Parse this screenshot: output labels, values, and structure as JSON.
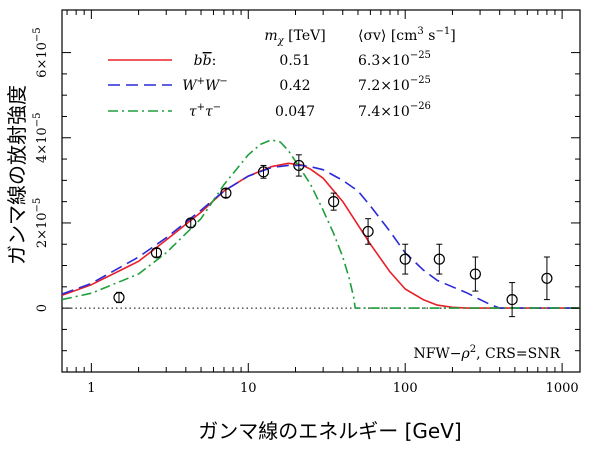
{
  "chart_data": {
    "type": "line",
    "xlabel": "ガンマ線のエネルギー [GeV]",
    "ylabel": "ガンマ線の放射強度",
    "x_scale": "log",
    "xlim": [
      0.65,
      1300
    ],
    "ylim": [
      -1.5e-05,
      7e-05
    ],
    "x_ticks": [
      {
        "value": 1,
        "label": "1"
      },
      {
        "value": 10,
        "label": "10"
      },
      {
        "value": 100,
        "label": "100"
      },
      {
        "value": 1000,
        "label": "1000"
      }
    ],
    "y_ticks": [
      {
        "value": 0,
        "label": "0",
        "parts": [
          "0",
          "",
          ""
        ]
      },
      {
        "value": 2e-05,
        "label": "2×10⁻⁵",
        "parts": [
          "2×10",
          "−5",
          ""
        ]
      },
      {
        "value": 4e-05,
        "label": "4×10⁻⁵",
        "parts": [
          "4×10",
          "−5",
          ""
        ]
      },
      {
        "value": 6e-05,
        "label": "6×10⁻⁵",
        "parts": [
          "6×10",
          "−5",
          ""
        ]
      }
    ],
    "grid": false,
    "zero_line": true,
    "legend": {
      "placement": "top-left",
      "header_mass": {
        "base": "m",
        "sub": "χ",
        "rest": " [TeV]"
      },
      "header_sigma": {
        "open": "⟨σv⟩",
        "unit": "  [cm",
        "exp1": "3",
        "mid": " s",
        "exp2": "−1",
        "close": "]"
      }
    },
    "series": [
      {
        "name": "bb",
        "label": {
          "base": "b",
          "bar": "b",
          "sup": "",
          "tail": ":"
        },
        "mass": "0.51",
        "sigma_base": "6.3×10",
        "sigma_exp": "−25",
        "color": "#e8202a",
        "dash": "",
        "x": [
          0.65,
          1,
          2,
          3,
          5,
          7,
          10,
          14,
          18,
          22,
          25,
          30,
          40,
          50,
          60,
          80,
          100,
          130,
          160,
          200,
          250,
          300,
          1300
        ],
        "y": [
          3e-06,
          5.5e-06,
          1.1e-05,
          1.6e-05,
          2.25e-05,
          2.75e-05,
          3.1e-05,
          3.32e-05,
          3.4e-05,
          3.36e-05,
          3.26e-05,
          3.05e-05,
          2.5e-05,
          1.95e-05,
          1.5e-05,
          8.5e-06,
          4.5e-06,
          2e-06,
          7e-07,
          2e-07,
          0.0,
          0.0,
          0.0
        ]
      },
      {
        "name": "WW",
        "label": {
          "base": "W",
          "bar": "",
          "sup": "+",
          "tail": ""
        },
        "mass": "0.42",
        "sigma_base": "7.2×10",
        "sigma_exp": "−25",
        "color": "#2a2ad9",
        "dash": "12,6",
        "x": [
          0.65,
          1,
          2,
          3,
          5,
          7,
          10,
          14,
          18,
          22,
          25,
          30,
          40,
          50,
          60,
          80,
          100,
          130,
          160,
          200,
          250,
          300,
          350,
          400,
          1300
        ],
        "y": [
          3.3e-06,
          5.8e-06,
          1.2e-05,
          1.65e-05,
          2.3e-05,
          2.75e-05,
          3.1e-05,
          3.3e-05,
          3.35e-05,
          3.35e-05,
          3.32e-05,
          3.25e-05,
          3e-05,
          2.75e-05,
          2.4e-05,
          1.8e-05,
          1.3e-05,
          9e-06,
          6.5e-06,
          5e-06,
          3.5e-06,
          2e-06,
          8e-07,
          0.0,
          0.0
        ]
      },
      {
        "name": "tautau",
        "label": {
          "base": "τ",
          "bar": "",
          "sup": "+",
          "tail": ""
        },
        "mass": "0.047",
        "sigma_base": "7.4×10",
        "sigma_exp": "−26",
        "color": "#1f9e3a",
        "dash": "10,4,2,4",
        "x": [
          0.65,
          1,
          2,
          3,
          5,
          7,
          10,
          12,
          14,
          16,
          18,
          20,
          25,
          30,
          35,
          40,
          44,
          47,
          48,
          1300
        ],
        "y": [
          2e-06,
          3.5e-06,
          8e-06,
          1.3e-05,
          2.1e-05,
          2.9e-05,
          3.6e-05,
          3.85e-05,
          3.95e-05,
          3.9e-05,
          3.7e-05,
          3.45e-05,
          2.9e-05,
          2.3e-05,
          1.75e-05,
          1.2e-05,
          7e-06,
          2.5e-06,
          0.0,
          0.0
        ]
      }
    ],
    "data_points": {
      "x": [
        1.5,
        2.6,
        4.3,
        7.2,
        12.5,
        21,
        35,
        58,
        100,
        165,
        280,
        480,
        800
      ],
      "y": [
        2.5e-06,
        1.3e-05,
        2e-05,
        2.7e-05,
        3.2e-05,
        3.35e-05,
        2.5e-05,
        1.8e-05,
        1.15e-05,
        1.15e-05,
        8e-06,
        2e-06,
        7e-06
      ],
      "err": [
        1.2e-06,
        1e-06,
        1e-06,
        1e-06,
        1.5e-06,
        2.5e-06,
        2e-06,
        3e-06,
        3.5e-06,
        3.5e-06,
        4e-06,
        4e-06,
        5e-06
      ]
    },
    "annotation": {
      "base": "NFW−",
      "rho": "ρ",
      "exp": "2",
      "rest": ", CRS=SNR"
    }
  }
}
